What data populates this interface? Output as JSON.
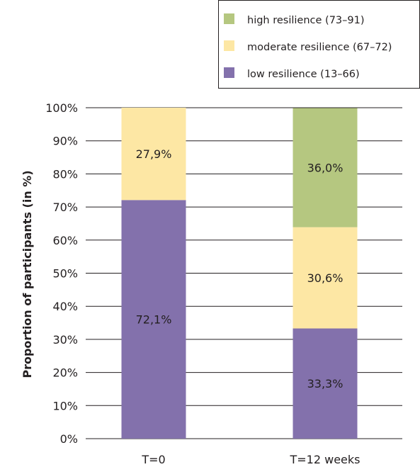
{
  "chart_data": {
    "type": "bar",
    "stacked": true,
    "categories": [
      "T=0",
      "T=12 weeks"
    ],
    "series": [
      {
        "name": "low resilience (13–66)",
        "color": "#8371ac",
        "values": [
          72.1,
          33.3
        ],
        "labels": [
          "72,1%",
          "33,3%"
        ]
      },
      {
        "name": "moderate resilience (67–72)",
        "color": "#fde7a4",
        "values": [
          27.9,
          30.6
        ],
        "labels": [
          "27,9%",
          "30,6%"
        ]
      },
      {
        "name": "high resilience (73–91)",
        "color": "#b5c780",
        "values": [
          0,
          36.0
        ],
        "labels": [
          "",
          "36,0%"
        ]
      }
    ],
    "legend_order": [
      2,
      1,
      0
    ],
    "legend_position": "top-right",
    "ylabel": "Proportion of participants (in %)",
    "xlabel": "",
    "ylim": [
      0,
      100
    ],
    "yticks": [
      0,
      10,
      20,
      30,
      40,
      50,
      60,
      70,
      80,
      90,
      100
    ],
    "ytick_labels": [
      "0%",
      "10%",
      "20%",
      "30%",
      "40%",
      "50%",
      "60%",
      "70%",
      "80%",
      "90%",
      "100%"
    ],
    "grid": true
  }
}
